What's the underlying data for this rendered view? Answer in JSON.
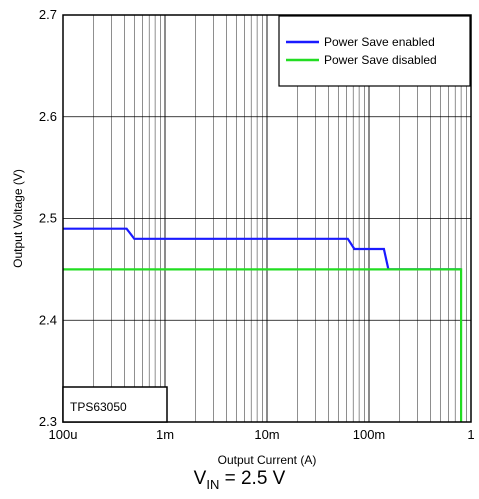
{
  "chart_data": {
    "type": "line",
    "xscale": "log",
    "xlabel": "Output Current (A)",
    "ylabel": "Output Voltage (V)",
    "xlim": [
      0.0001,
      1
    ],
    "ylim": [
      2.3,
      2.7
    ],
    "x_ticks": [
      {
        "value": 0.0001,
        "label": "100u"
      },
      {
        "value": 0.001,
        "label": "1m"
      },
      {
        "value": 0.01,
        "label": "10m"
      },
      {
        "value": 0.1,
        "label": "100m"
      },
      {
        "value": 1,
        "label": "1"
      }
    ],
    "y_ticks": [
      {
        "value": 2.3,
        "label": "2.3"
      },
      {
        "value": 2.4,
        "label": "2.4"
      },
      {
        "value": 2.5,
        "label": "2.5"
      },
      {
        "value": 2.6,
        "label": "2.6"
      },
      {
        "value": 2.7,
        "label": "2.7"
      }
    ],
    "grid": true,
    "legend_position": "top-right",
    "annotation_box": "TPS63050",
    "series": [
      {
        "name": "Power Save enabled",
        "color": "#1a1aff",
        "points": [
          [
            0.0001,
            2.49
          ],
          [
            0.00042,
            2.49
          ],
          [
            0.0005,
            2.48
          ],
          [
            0.062,
            2.48
          ],
          [
            0.072,
            2.47
          ],
          [
            0.14,
            2.47
          ],
          [
            0.155,
            2.45
          ],
          [
            0.8,
            2.45
          ]
        ]
      },
      {
        "name": "Power Save disabled",
        "color": "#22dd22",
        "points": [
          [
            0.0001,
            2.45
          ],
          [
            0.8,
            2.45
          ],
          [
            0.8,
            2.3
          ]
        ]
      }
    ]
  },
  "caption": {
    "main": "V",
    "subscript": "IN",
    "rest": " = 2.5 V"
  }
}
